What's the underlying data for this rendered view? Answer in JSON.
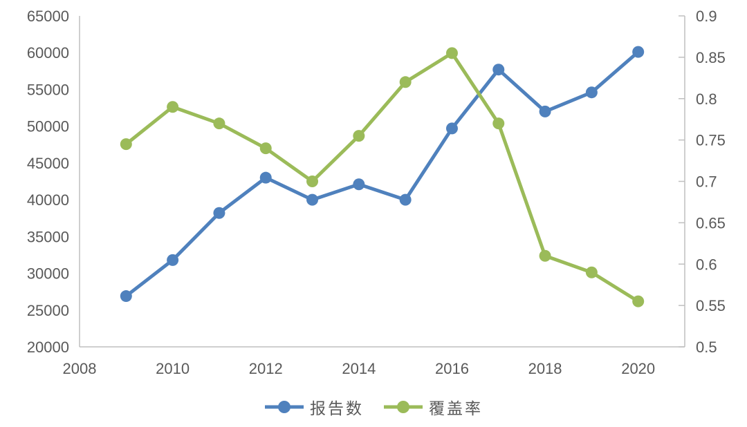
{
  "chart_data": {
    "type": "line",
    "title": "",
    "x": [
      2009,
      2010,
      2011,
      2012,
      2013,
      2014,
      2015,
      2016,
      2017,
      2018,
      2019,
      2020
    ],
    "x_ticks": [
      2008,
      2010,
      2012,
      2014,
      2016,
      2018,
      2020
    ],
    "xlim": [
      2008,
      2021
    ],
    "series": [
      {
        "name": "报告数",
        "axis": "left",
        "color": "#4F81BD",
        "values": [
          26900,
          31800,
          38200,
          43000,
          40000,
          42100,
          40000,
          49700,
          57700,
          52000,
          54600,
          60100
        ]
      },
      {
        "name": "覆盖率",
        "axis": "right",
        "color": "#9BBB59",
        "values": [
          0.745,
          0.79,
          0.77,
          0.74,
          0.7,
          0.755,
          0.82,
          0.855,
          0.77,
          0.61,
          0.59,
          0.555
        ]
      }
    ],
    "left_axis": {
      "min": 20000,
      "max": 65000,
      "step": 5000
    },
    "right_axis": {
      "min": 0.5,
      "max": 0.9,
      "step": 0.05
    },
    "grid": false,
    "legend_position": "bottom",
    "text_color": "#595959",
    "axis_line_color": "#BFBFBF"
  },
  "legend": {
    "items": [
      {
        "label": "报告数",
        "color": "#4F81BD"
      },
      {
        "label": "覆盖率",
        "color": "#9BBB59"
      }
    ]
  }
}
